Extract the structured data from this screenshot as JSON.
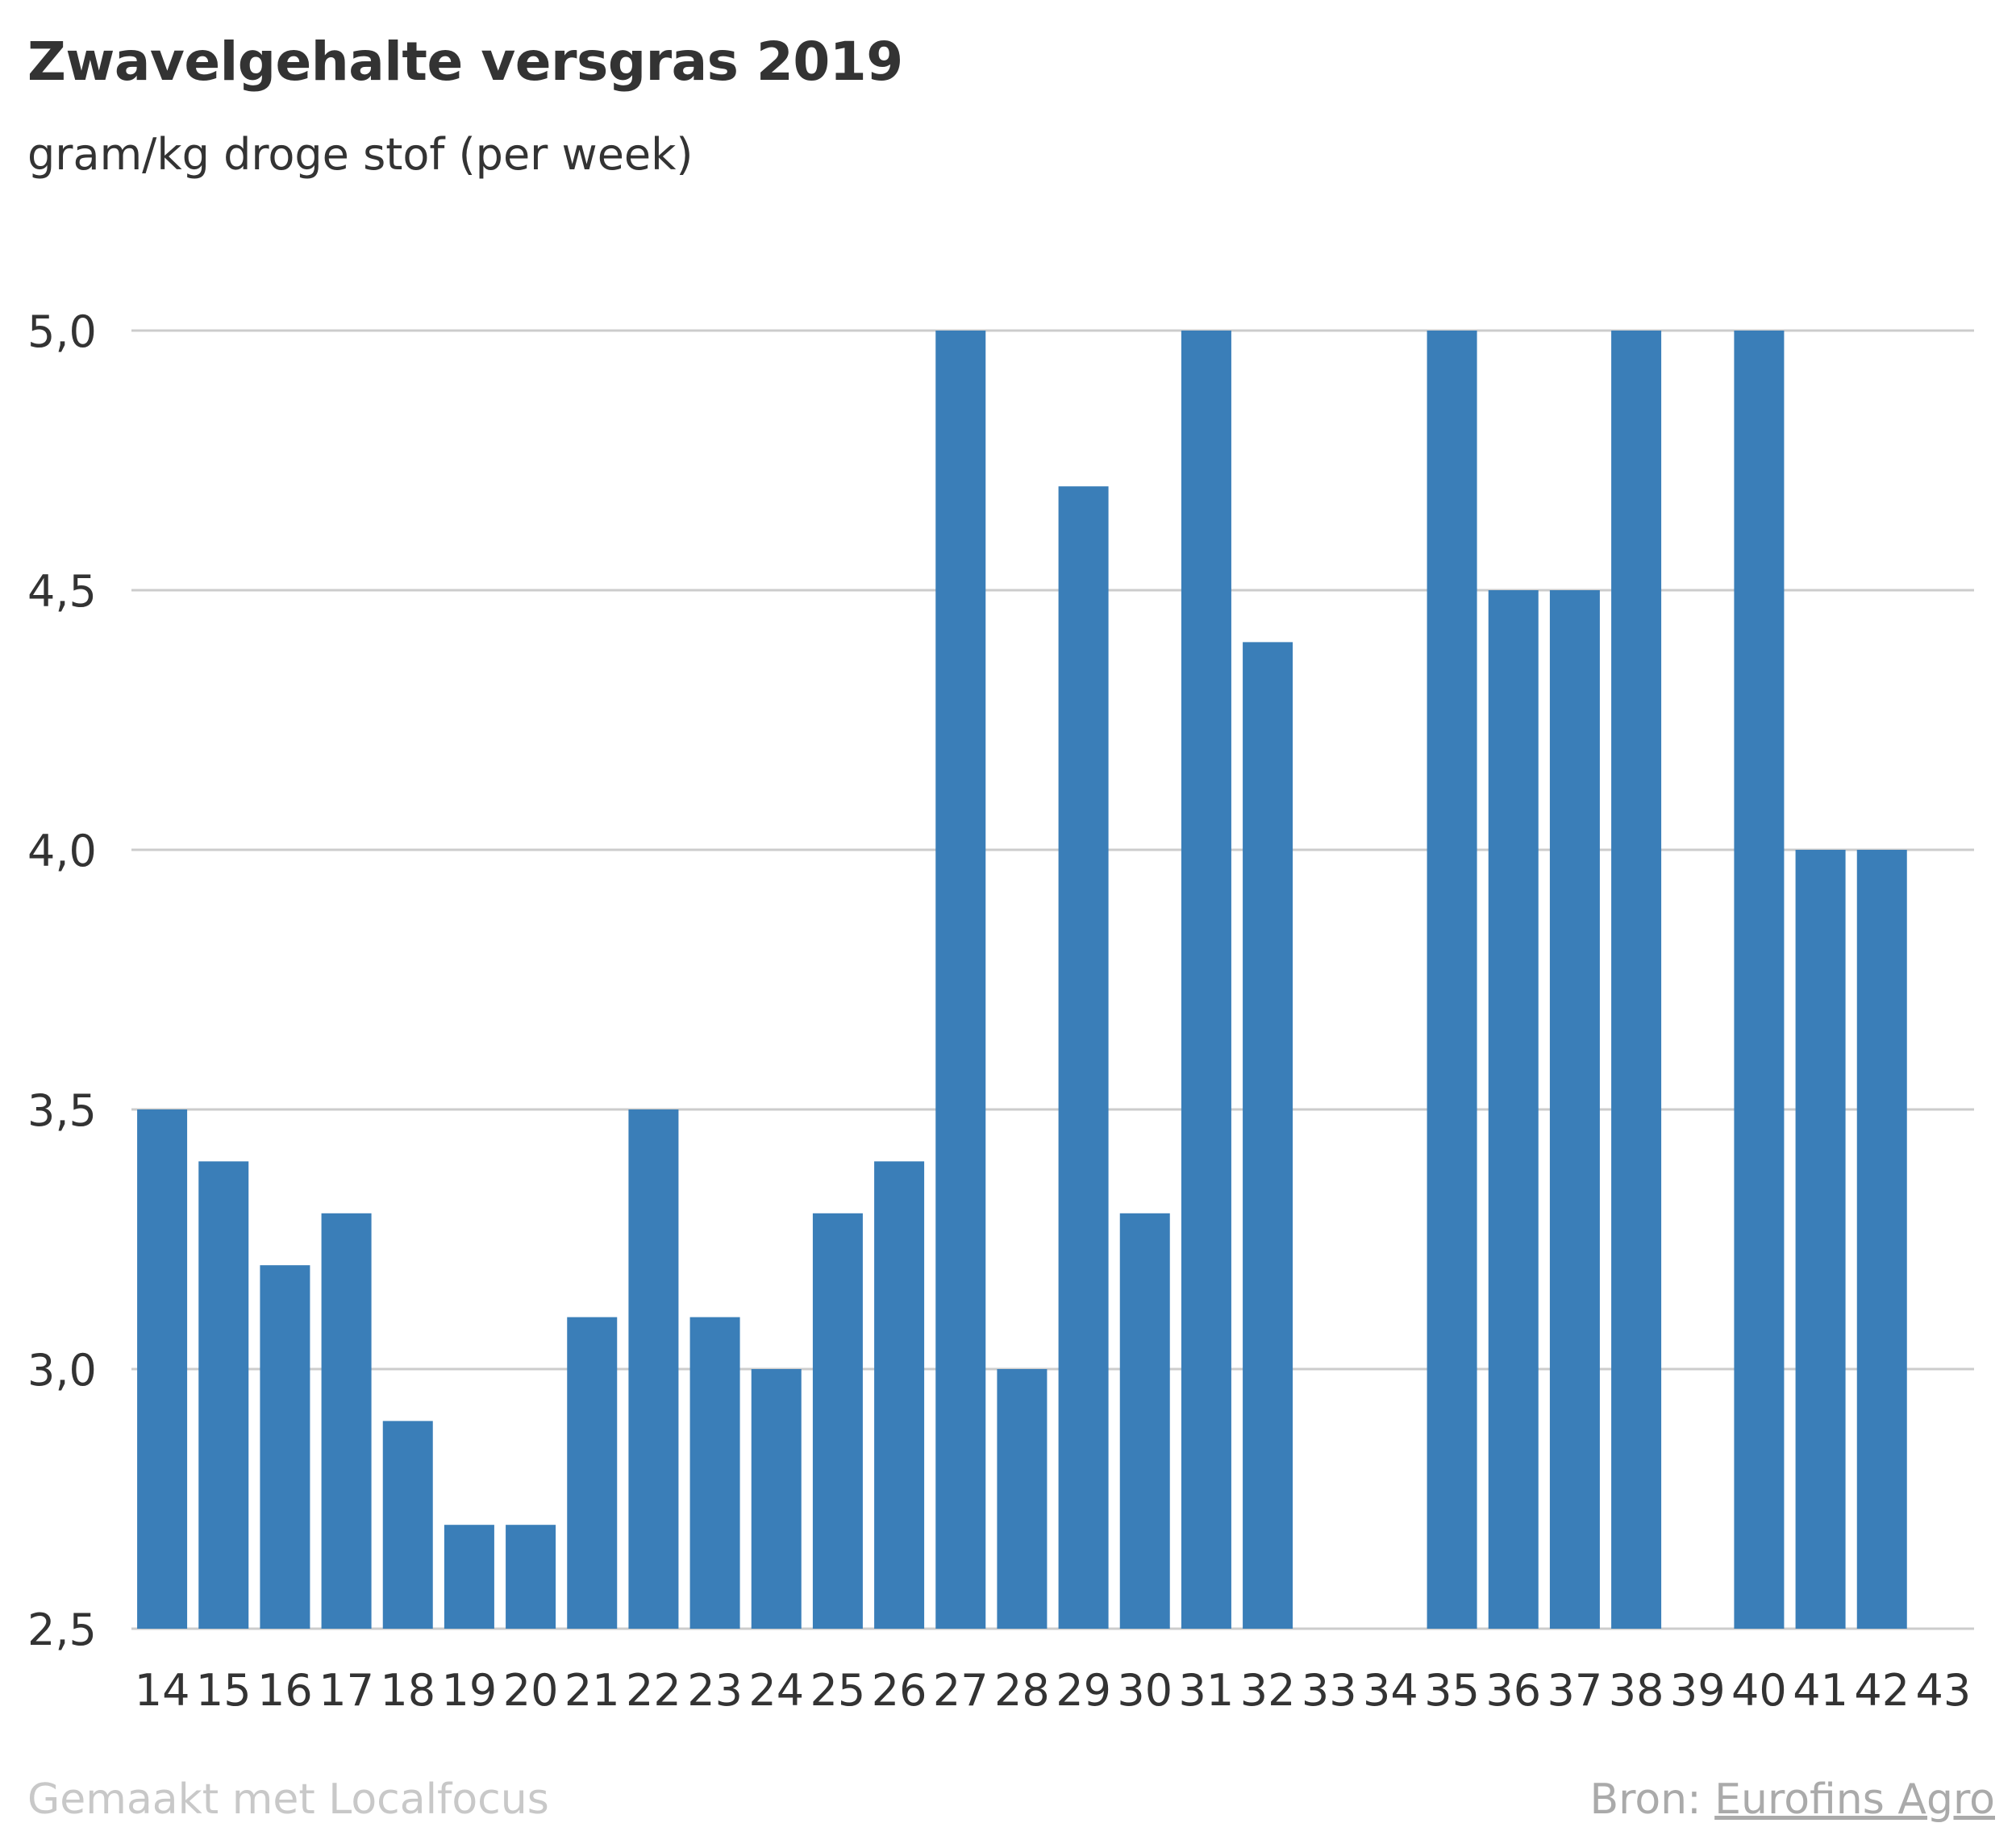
{
  "chart_data": {
    "type": "bar",
    "title": "Zwavelgehalte versgras 2019",
    "subtitle": "gram/kg droge stof (per week)",
    "categories": [
      "14",
      "15",
      "16",
      "17",
      "18",
      "19",
      "20",
      "21",
      "22",
      "23",
      "24",
      "25",
      "26",
      "27",
      "28",
      "29",
      "30",
      "31",
      "32",
      "33",
      "34",
      "35",
      "36",
      "37",
      "38",
      "39",
      "40",
      "41",
      "42",
      "43"
    ],
    "values": [
      3.5,
      3.4,
      3.2,
      3.3,
      2.9,
      2.7,
      2.7,
      3.1,
      3.5,
      3.1,
      3.0,
      3.3,
      3.4,
      5.0,
      3.0,
      4.7,
      3.3,
      5.0,
      4.4,
      null,
      null,
      5.0,
      4.5,
      4.5,
      5.0,
      null,
      5.0,
      4.0,
      4.0,
      null
    ],
    "ylim": [
      2.5,
      5.0
    ],
    "yticks": [
      2.5,
      3.0,
      3.5,
      4.0,
      4.5,
      5.0
    ],
    "ytick_labels": [
      "2,5",
      "3,0",
      "3,5",
      "4,0",
      "4,5",
      "5,0"
    ],
    "grid": true,
    "bar_color": "#3a7eb8",
    "grid_color": "#cccccc"
  },
  "footer": {
    "made_with": "Gemaakt met Localfocus",
    "source_label": "Bron:",
    "source_name": "Eurofins Agro"
  }
}
